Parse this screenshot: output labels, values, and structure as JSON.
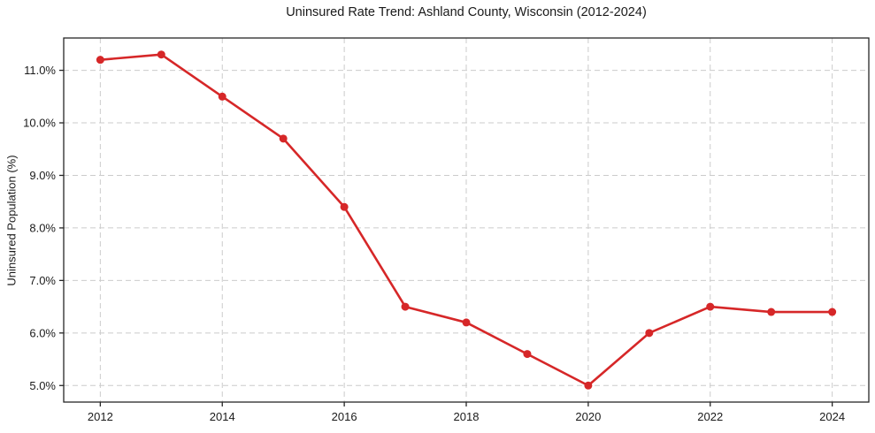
{
  "figure": {
    "background": "#ffffff"
  },
  "chart_data": {
    "type": "line",
    "title": "Uninsured Rate Trend: Ashland County, Wisconsin (2012-2024)",
    "xlabel": "",
    "ylabel": "Uninsured Population (%)",
    "x": [
      2012,
      2013,
      2014,
      2015,
      2016,
      2017,
      2018,
      2019,
      2020,
      2021,
      2022,
      2023,
      2024
    ],
    "values": [
      11.2,
      11.3,
      10.5,
      9.7,
      8.4,
      6.5,
      6.2,
      5.6,
      5.0,
      6.0,
      6.5,
      6.4,
      6.4
    ],
    "xticks": [
      2012,
      2014,
      2016,
      2018,
      2020,
      2022,
      2024
    ],
    "xticklabels": [
      "2012",
      "2014",
      "2016",
      "2018",
      "2020",
      "2022",
      "2024"
    ],
    "yticks": [
      5.0,
      6.0,
      7.0,
      8.0,
      9.0,
      10.0,
      11.0
    ],
    "yticklabels": [
      "5.0%",
      "6.0%",
      "7.0%",
      "8.0%",
      "9.0%",
      "10.0%",
      "11.0%"
    ],
    "xlim": [
      2011.4,
      2024.6
    ],
    "ylim": [
      4.685,
      11.615
    ],
    "grid": true,
    "legend": "none",
    "line_color": "#d62728",
    "marker": "circle"
  }
}
